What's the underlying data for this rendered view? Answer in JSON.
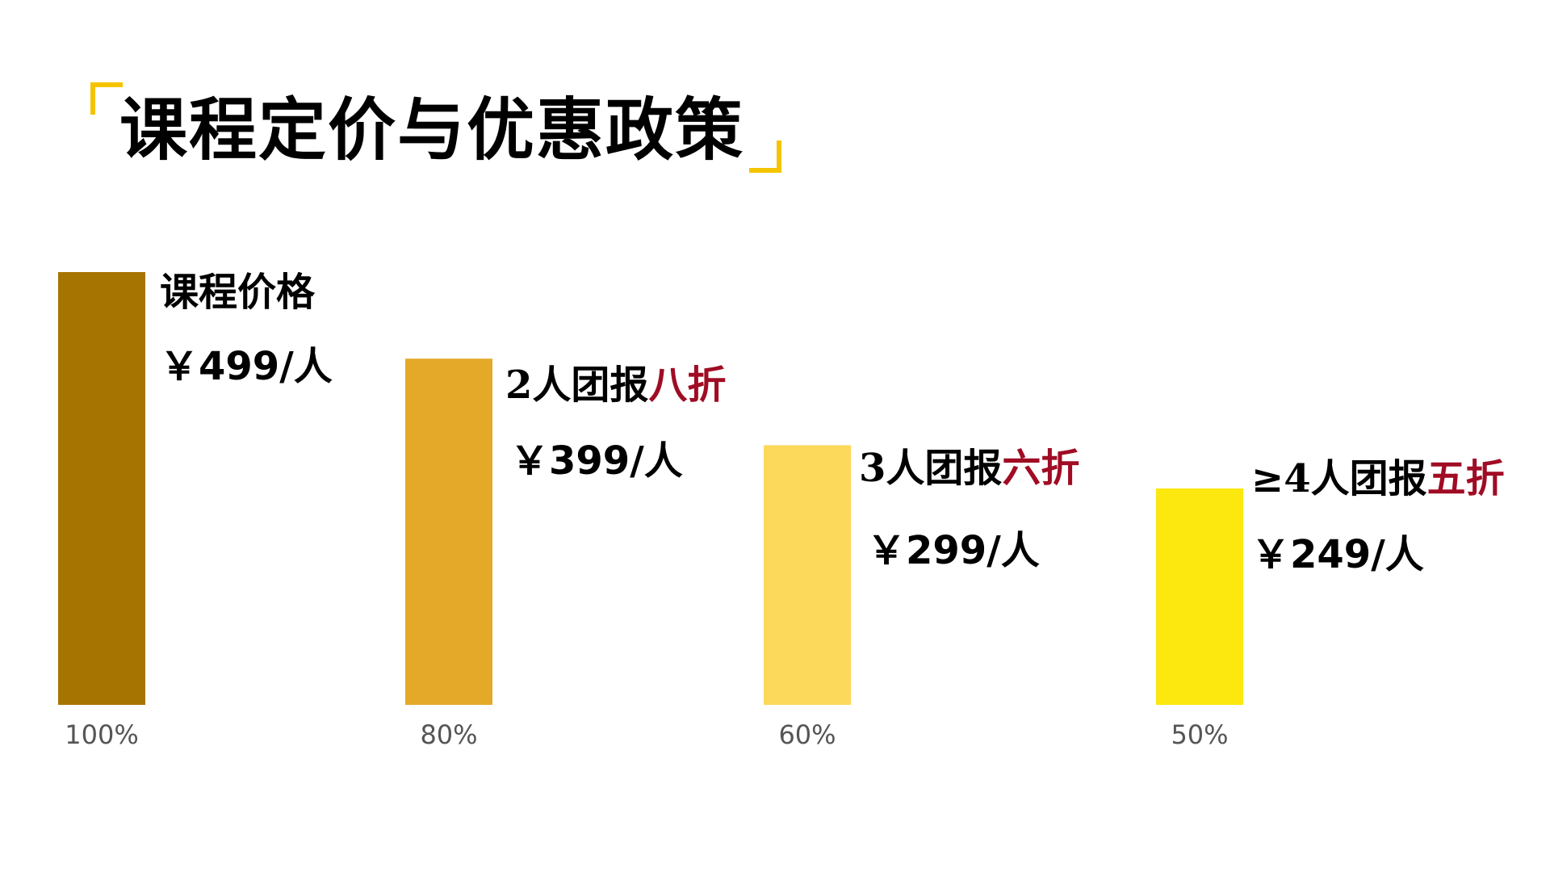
{
  "title": "课程定价与优惠政策",
  "colors": {
    "bracket": "#f5c400",
    "text": "#000000",
    "discount": "#a00c24",
    "tick": "#555555"
  },
  "chart_data": {
    "type": "bar",
    "categories": [
      "100%",
      "80%",
      "60%",
      "50%"
    ],
    "values": [
      100,
      80,
      60,
      50
    ],
    "bar_colors": [
      "#a67400",
      "#e5a929",
      "#fcd95a",
      "#fce70f"
    ],
    "ylim": [
      0,
      100
    ],
    "grid": false,
    "legend": "none",
    "annotations": [
      {
        "name": "课程价格",
        "discount": "",
        "price": "￥499/人"
      },
      {
        "name": "2人团报",
        "discount": "八折",
        "price": "￥399/人"
      },
      {
        "name": "3人团报",
        "discount": "六折",
        "price": "￥299/人"
      },
      {
        "name": "≥4人团报",
        "discount": "五折",
        "price": "￥249/人"
      }
    ]
  }
}
